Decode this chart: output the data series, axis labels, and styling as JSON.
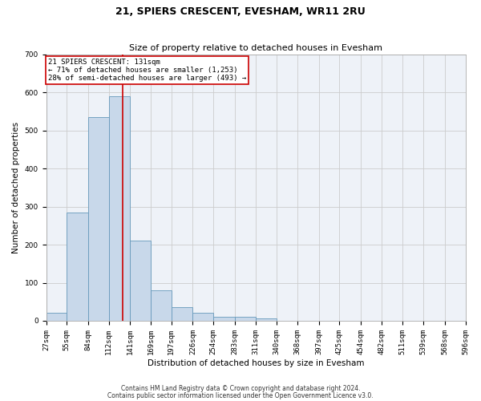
{
  "title": "21, SPIERS CRESCENT, EVESHAM, WR11 2RU",
  "subtitle": "Size of property relative to detached houses in Evesham",
  "xlabel": "Distribution of detached houses by size in Evesham",
  "ylabel": "Number of detached properties",
  "footer1": "Contains HM Land Registry data © Crown copyright and database right 2024.",
  "footer2": "Contains public sector information licensed under the Open Government Licence v3.0.",
  "bin_edges": [
    27,
    55,
    84,
    112,
    141,
    169,
    197,
    226,
    254,
    283,
    311,
    340,
    368,
    397,
    425,
    454,
    482,
    511,
    539,
    568,
    596
  ],
  "bar_heights": [
    22,
    285,
    535,
    590,
    210,
    80,
    35,
    22,
    10,
    10,
    7,
    0,
    0,
    0,
    0,
    0,
    0,
    0,
    0,
    0
  ],
  "bar_color": "#c8d8ea",
  "bar_edge_color": "#6699bb",
  "grid_color": "#cccccc",
  "bg_color": "#eef2f8",
  "vline_x": 131,
  "vline_color": "#cc0000",
  "annotation_text": "21 SPIERS CRESCENT: 131sqm\n← 71% of detached houses are smaller (1,253)\n28% of semi-detached houses are larger (493) →",
  "annotation_box_color": "#cc0000",
  "annotation_bg": "#ffffff",
  "ylim": [
    0,
    700
  ],
  "xlim": [
    27,
    596
  ],
  "title_fontsize": 9,
  "subtitle_fontsize": 8,
  "axis_label_fontsize": 7.5,
  "tick_fontsize": 6.5,
  "annot_fontsize": 6.5,
  "footer_fontsize": 5.5
}
